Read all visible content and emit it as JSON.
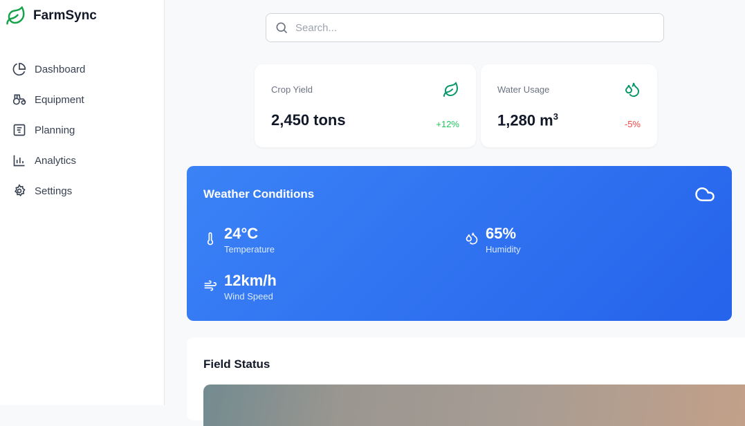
{
  "app": {
    "name": "FarmSync",
    "brand_color": "#16a34a"
  },
  "sidebar": {
    "items": [
      {
        "label": "Dashboard",
        "icon": "pie-chart-icon"
      },
      {
        "label": "Equipment",
        "icon": "tractor-icon"
      },
      {
        "label": "Planning",
        "icon": "clipboard-icon"
      },
      {
        "label": "Analytics",
        "icon": "bar-chart-icon"
      },
      {
        "label": "Settings",
        "icon": "gear-icon"
      }
    ]
  },
  "search": {
    "placeholder": "Search...",
    "value": ""
  },
  "stats": [
    {
      "label": "Crop Yield",
      "value": "2,450 tons",
      "change": "+12%",
      "change_color": "#22c55e",
      "icon": "leaf-icon"
    },
    {
      "label": "Water Usage",
      "value": "1,280 m",
      "value_sup": "3",
      "change": "-5%",
      "change_color": "#ef4444",
      "icon": "droplets-icon"
    }
  ],
  "weather": {
    "title": "Weather Conditions",
    "icon": "cloud-icon",
    "items": [
      {
        "value": "24°C",
        "label": "Temperature",
        "icon": "thermometer-icon"
      },
      {
        "value": "65%",
        "label": "Humidity",
        "icon": "droplets-icon"
      },
      {
        "value": "12km/h",
        "label": "Wind Speed",
        "icon": "wind-icon"
      }
    ]
  },
  "field": {
    "title": "Field Status"
  }
}
